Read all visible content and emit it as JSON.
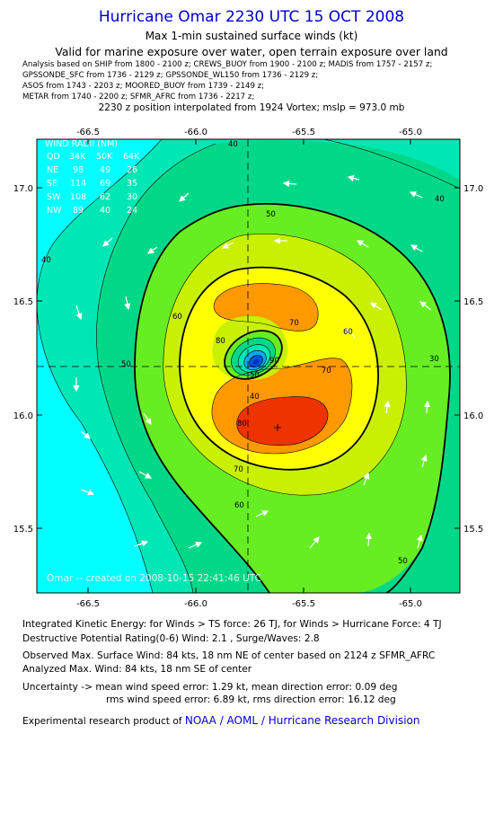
{
  "header": {
    "title": "Hurricane Omar 2230 UTC 15 OCT 2008",
    "subtitle1": "Max 1-min sustained surface winds (kt)",
    "subtitle2": "Valid for marine exposure over water, open terrain exposure over land",
    "sources": [
      "Analysis based on  SHIP from 1800 - 2100 z;  CREWS_BUOY from 1900 - 2100 z;  MADIS from 1757 - 2157 z;",
      "GPSSONDE_SFC from 1736 - 2129 z;  GPSSONDE_WL150 from 1736 - 2129 z;",
      "ASOS from 1743 - 2203 z;  MOORED_BUOY from 1739 - 2149 z;",
      "METAR from 1740 - 2200 z;  SFMR_AFRC from 1736 - 2217 z;"
    ],
    "position_note": "2230 z position interpolated from 1924 Vortex; mslp = 973.0 mb"
  },
  "map": {
    "lon_ticks": [
      "-66.5",
      "-66.0",
      "-65.5",
      "-65.0"
    ],
    "lat_ticks": [
      "17.0",
      "16.5",
      "16.0",
      "15.5"
    ],
    "contour_labels": [
      "40",
      "40",
      "40",
      "50",
      "50",
      "50",
      "50",
      "60",
      "60",
      "60",
      "70",
      "70",
      "70",
      "80",
      "80",
      "90",
      "40",
      "30"
    ],
    "watermark": "Omar -- created on 2008-10-15 22:41:46 UTC",
    "wind_radii": {
      "title": "WIND RADII (NM)",
      "header": [
        "QD",
        "34K",
        "50K",
        "64K"
      ],
      "rows": [
        [
          "NE",
          "98",
          "49",
          "26"
        ],
        [
          "SE",
          "114",
          "69",
          "35"
        ],
        [
          "SW",
          "108",
          "62",
          "30"
        ],
        [
          "NW",
          "89",
          "40",
          "24"
        ]
      ]
    },
    "colors": {
      "cyan": "#00ffff",
      "band30": "#00e6b4",
      "band40": "#00d888",
      "band50": "#66ee22",
      "band60": "#c8f000",
      "band70": "#ffff00",
      "band80": "#ff9900",
      "band90": "#ee3300",
      "eye": "#0033cc"
    }
  },
  "footer": {
    "ike": "Integrated Kinetic Energy:  for Winds > TS force: 26 TJ,  for Winds > Hurricane Force: 4 TJ",
    "dpr": "Destructive Potential Rating(0-6)   Wind: 2.1 , Surge/Waves: 2.8",
    "observed": "Observed Max. Surface Wind: 84 kts, 18 nm NE of center based on 2124 z SFMR_AFRC",
    "analyzed": "Analyzed Max. Wind: 84 kts, 18 nm SE of center",
    "uncert1": "Uncertainty -> mean wind speed error: 1.29 kt,   mean direction error: 0.09 deg",
    "uncert2": "rms wind speed error: 6.89 kt,   rms direction error: 16.12 deg",
    "credit_prefix": "Experimental research product of",
    "credit_org": "NOAA / AOML / Hurricane Research Division"
  }
}
